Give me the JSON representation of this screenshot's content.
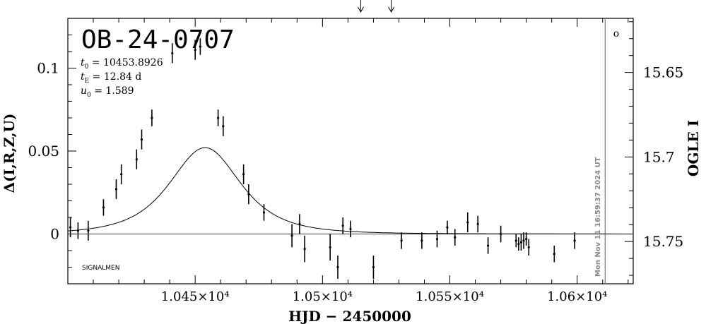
{
  "chart_data": {
    "type": "scatter",
    "title": "OB-24-0707",
    "xlabel": "HJD − 2450000",
    "ylabel_left": "Δ(I,R,Z,U)",
    "ylabel_right": "OGLE I",
    "xlim": [
      10400,
      10622
    ],
    "ylim_left": [
      -0.03,
      0.13
    ],
    "ylim_right_mag": [
      15.775,
      15.618
    ],
    "x_ticks": [
      {
        "value": 10450,
        "label": "1.045×10⁴"
      },
      {
        "value": 10500,
        "label": "1.05×10⁴"
      },
      {
        "value": 10550,
        "label": "1.055×10⁴"
      },
      {
        "value": 10600,
        "label": "1.06×10⁴"
      }
    ],
    "y_ticks_left": [
      {
        "value": 0,
        "label": "0"
      },
      {
        "value": 0.05,
        "label": "0.05"
      },
      {
        "value": 0.1,
        "label": "0.1"
      }
    ],
    "y_ticks_right": [
      {
        "value": 15.65,
        "label": "15.65"
      },
      {
        "value": 15.7,
        "label": "15.7"
      },
      {
        "value": 15.75,
        "label": "15.75"
      }
    ],
    "params": [
      {
        "sym": "t",
        "sub": "0",
        "text": " = 10453.8926"
      },
      {
        "sym": "t",
        "sub": "E",
        "text": " = 12.84 d"
      },
      {
        "sym": "u",
        "sub": "0",
        "text": " = 1.589"
      }
    ],
    "model": {
      "t0": 10453.8926,
      "tE": 12.84,
      "u0": 1.589,
      "scale": 0.4533
    },
    "vertical_line_x": 10611,
    "arrows_x": [
      10515,
      10527
    ],
    "points": [
      {
        "x": 10401,
        "y": 0.004,
        "err": 0.006
      },
      {
        "x": 10404,
        "y": 0.002,
        "err": 0.005
      },
      {
        "x": 10408,
        "y": 0.002,
        "err": 0.006
      },
      {
        "x": 10414,
        "y": 0.016,
        "err": 0.005
      },
      {
        "x": 10419,
        "y": 0.027,
        "err": 0.006
      },
      {
        "x": 10421,
        "y": 0.036,
        "err": 0.006
      },
      {
        "x": 10427,
        "y": 0.045,
        "err": 0.006
      },
      {
        "x": 10429,
        "y": 0.057,
        "err": 0.006
      },
      {
        "x": 10433,
        "y": 0.07,
        "err": 0.005
      },
      {
        "x": 10441,
        "y": 0.109,
        "err": 0.006
      },
      {
        "x": 10450,
        "y": 0.111,
        "err": 0.006
      },
      {
        "x": 10452,
        "y": 0.113,
        "err": 0.005
      },
      {
        "x": 10459,
        "y": 0.07,
        "err": 0.005
      },
      {
        "x": 10461,
        "y": 0.065,
        "err": 0.006
      },
      {
        "x": 10469,
        "y": 0.036,
        "err": 0.006
      },
      {
        "x": 10471,
        "y": 0.024,
        "err": 0.006
      },
      {
        "x": 10477,
        "y": 0.013,
        "err": 0.005
      },
      {
        "x": 10488,
        "y": -0.001,
        "err": 0.007
      },
      {
        "x": 10491,
        "y": 0.006,
        "err": 0.006
      },
      {
        "x": 10493,
        "y": -0.009,
        "err": 0.008
      },
      {
        "x": 10503,
        "y": -0.008,
        "err": 0.008
      },
      {
        "x": 10506,
        "y": -0.02,
        "err": 0.007
      },
      {
        "x": 10508,
        "y": 0.005,
        "err": 0.005
      },
      {
        "x": 10511,
        "y": 0.003,
        "err": 0.005
      },
      {
        "x": 10520,
        "y": -0.02,
        "err": 0.007
      },
      {
        "x": 10531,
        "y": -0.004,
        "err": 0.005
      },
      {
        "x": 10539,
        "y": -0.004,
        "err": 0.005
      },
      {
        "x": 10545,
        "y": -0.003,
        "err": 0.005
      },
      {
        "x": 10549,
        "y": 0.004,
        "err": 0.004
      },
      {
        "x": 10552,
        "y": -0.002,
        "err": 0.005
      },
      {
        "x": 10557,
        "y": 0.007,
        "err": 0.006
      },
      {
        "x": 10561,
        "y": 0.006,
        "err": 0.005
      },
      {
        "x": 10565,
        "y": -0.007,
        "err": 0.005
      },
      {
        "x": 10570,
        "y": 0.0,
        "err": 0.005
      },
      {
        "x": 10576,
        "y": -0.004,
        "err": 0.004
      },
      {
        "x": 10577,
        "y": -0.006,
        "err": 0.004
      },
      {
        "x": 10578,
        "y": -0.005,
        "err": 0.005
      },
      {
        "x": 10579,
        "y": -0.004,
        "err": 0.005
      },
      {
        "x": 10580,
        "y": -0.003,
        "err": 0.004
      },
      {
        "x": 10581,
        "y": -0.008,
        "err": 0.005
      },
      {
        "x": 10591,
        "y": -0.012,
        "err": 0.005
      },
      {
        "x": 10599,
        "y": -0.004,
        "err": 0.005
      }
    ],
    "footer_label": "SIGNALMEN",
    "timestamp": "Mon Nov 11 16:59:37 2024 UT",
    "corner_symbol": "o"
  }
}
